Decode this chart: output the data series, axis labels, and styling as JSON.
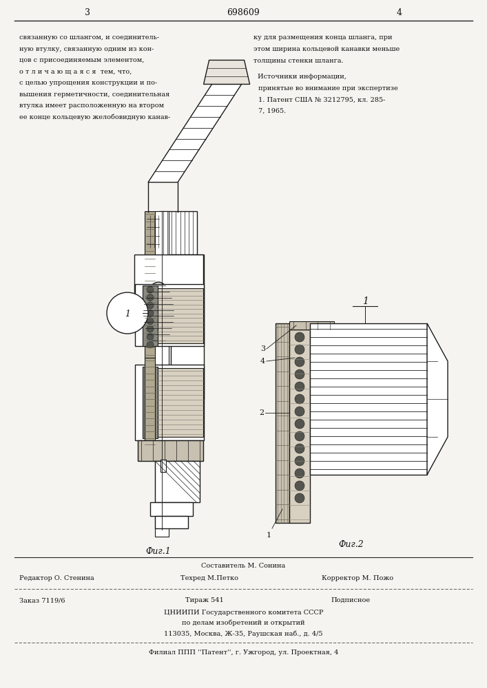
{
  "bg_color": "#f5f4f0",
  "page_width": 7.07,
  "page_height": 10.0,
  "header": {
    "left_number": "3",
    "center_patent": "698609",
    "right_number": "4"
  },
  "left_text_lines": [
    "связанную со шлангом, и соединитель-",
    "ную втулку, связанную одним из кон-",
    "цов с присоединяемым элементом,",
    "о т л и ч а ю щ а я с я  тем, что,",
    "с целью упрощения конструкции и по-",
    "вышения герметичности, соединительная",
    "втулка имеет расположенную на втором",
    "ее конце кольцевую желобовидную канав-"
  ],
  "right_text_lines": [
    "ку для размещения конца шланга, при",
    "этом ширина кольцевой канавки меньше",
    "толщины стенки шланга."
  ],
  "right_section_title": "Источники информации,",
  "right_section_sub": "принятые во внимание при экспертизе",
  "right_section_items": [
    "1. Патент США № 3212795, кл. 285-",
    "7, 1965."
  ],
  "fig1_caption": "Фиг.1",
  "fig2_caption": "Фиг.2",
  "footer_sestavitel": "Составитель М. Сонина",
  "footer_editor": "Редактор О. Стенина",
  "footer_tehred": "Техред М.Петко",
  "footer_korrektor": "Корректор М. Пожо",
  "footer_zakaz": "Заказ 7119/6",
  "footer_tirazh": "Тираж 541",
  "footer_podpisnoe": "Подписное",
  "footer_cnipi": "ЦНИИПИ Государственного комитета СССР",
  "footer_dela": "по делам изобретений и открытий",
  "footer_addr": "113035, Москва, Ж-35, Раушская наб., д. 4/5",
  "footer_filial": "Филиал ППП ''Патент'', г. Ужгород, ул. Проектная, 4",
  "text_color": "#111111",
  "line_color": "#222222",
  "hatch_color": "#444444",
  "drawing_color": "#1a1a1a"
}
